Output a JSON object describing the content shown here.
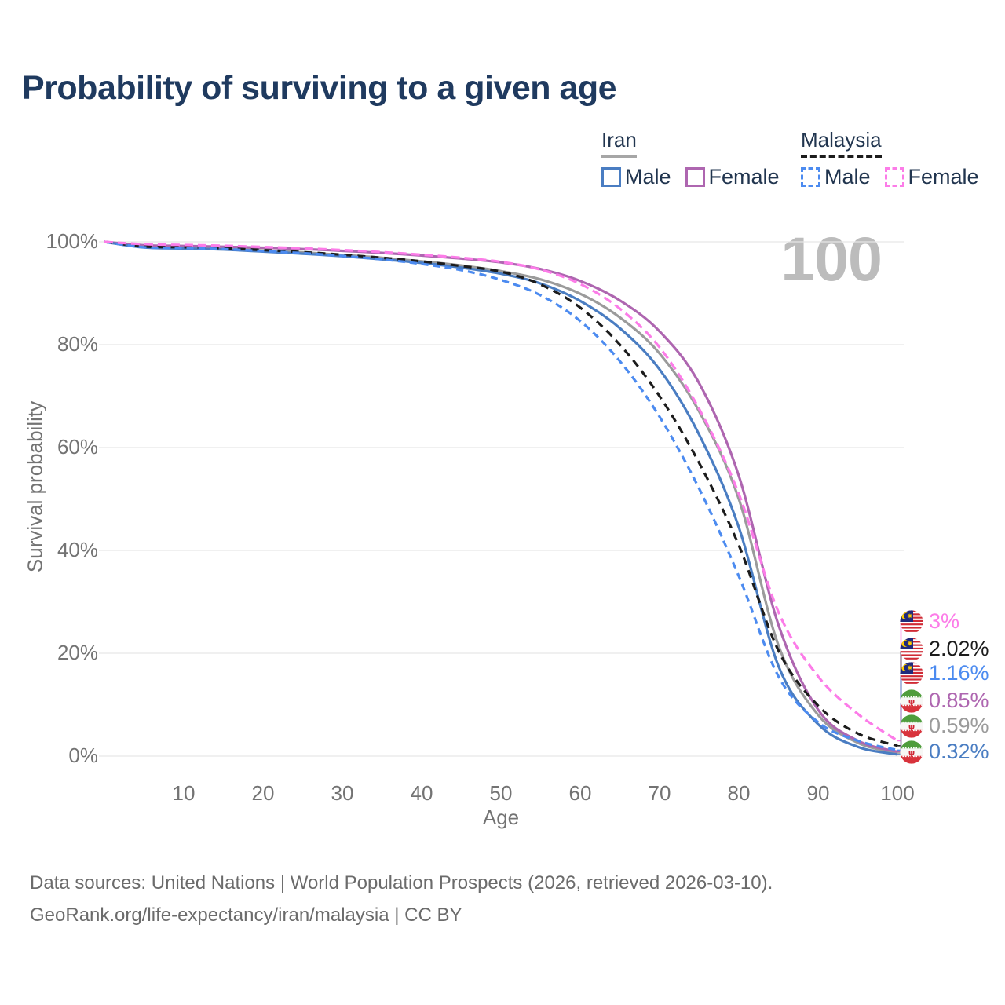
{
  "title": "Probability of surviving to a given age",
  "age_counter": "100",
  "legend": {
    "groups": [
      {
        "country": "Iran",
        "underline_style": "solid",
        "underline_color": "#a6a6a6",
        "items": [
          {
            "label": "Male",
            "color": "#4a7dc2",
            "dashed": false
          },
          {
            "label": "Female",
            "color": "#ae66b0",
            "dashed": false
          }
        ]
      },
      {
        "country": "Malaysia",
        "underline_style": "dashed",
        "underline_color": "#1c1c1c",
        "items": [
          {
            "label": "Male",
            "color": "#4c8bf0",
            "dashed": true
          },
          {
            "label": "Female",
            "color": "#fc7ce8",
            "dashed": true
          }
        ]
      }
    ]
  },
  "chart_data": {
    "type": "line",
    "title": "Probability of surviving to a given age",
    "xlabel": "Age",
    "ylabel": "Survival probability",
    "xlim": [
      0,
      100
    ],
    "ylim": [
      0,
      100
    ],
    "grid": "horizontal",
    "x_ticks": [
      10,
      20,
      30,
      40,
      50,
      60,
      70,
      80,
      90,
      100
    ],
    "y_ticks": [
      {
        "value": 0,
        "label": "0%"
      },
      {
        "value": 20,
        "label": "20%"
      },
      {
        "value": 40,
        "label": "40%"
      },
      {
        "value": 60,
        "label": "60%"
      },
      {
        "value": 80,
        "label": "80%"
      },
      {
        "value": 100,
        "label": "100%"
      }
    ],
    "ages": [
      0,
      5,
      10,
      15,
      20,
      25,
      30,
      35,
      40,
      45,
      50,
      55,
      60,
      65,
      70,
      75,
      80,
      85,
      90,
      95,
      100
    ],
    "series": [
      {
        "name": "Iran Male",
        "slug": "iran-male",
        "country": "Iran",
        "sex": "Male",
        "color": "#4a7dc2",
        "dashed": false,
        "flag": "iran",
        "end_label": "0.32%",
        "end_value": 0.32,
        "values": [
          100,
          98.9,
          98.7,
          98.5,
          98.1,
          97.7,
          97.2,
          96.6,
          95.9,
          95.0,
          93.8,
          91.9,
          88.5,
          83.2,
          75.2,
          62.5,
          44.5,
          17.5,
          6.2,
          1.8,
          0.32
        ]
      },
      {
        "name": "Iran Female",
        "slug": "iran-female",
        "country": "Iran",
        "sex": "Female",
        "color": "#ae66b0",
        "dashed": false,
        "flag": "iran",
        "end_label": "0.85%",
        "end_value": 0.85,
        "values": [
          100,
          99.35,
          99.2,
          99.05,
          98.85,
          98.6,
          98.25,
          97.85,
          97.35,
          96.75,
          96.0,
          94.7,
          92.4,
          88.6,
          82.6,
          72.5,
          54.5,
          25.5,
          9.0,
          3.0,
          0.85
        ]
      },
      {
        "name": "Iran",
        "slug": "iran",
        "country": "Iran",
        "sex": "Both",
        "color": "#9b9b9b",
        "dashed": false,
        "flag": "iran",
        "end_label": "0.59%",
        "end_value": 0.59,
        "values": [
          100,
          99.0,
          98.85,
          98.7,
          98.3,
          97.95,
          97.45,
          96.9,
          96.2,
          95.4,
          94.3,
          92.7,
          89.9,
          85.3,
          78.3,
          67.0,
          50.0,
          21.5,
          8.0,
          2.6,
          0.59
        ]
      },
      {
        "name": "Malaysia Male",
        "slug": "malaysia-male",
        "country": "Malaysia",
        "sex": "Male",
        "color": "#4c8bf0",
        "dashed": true,
        "flag": "malaysia",
        "end_label": "1.16%",
        "end_value": 1.16,
        "values": [
          100,
          98.95,
          98.8,
          98.6,
          98.2,
          97.8,
          97.25,
          96.6,
          95.7,
          94.5,
          92.6,
          89.6,
          84.6,
          76.8,
          66.0,
          52.0,
          35.0,
          15.5,
          6.6,
          3.0,
          1.16
        ]
      },
      {
        "name": "Malaysia Female",
        "slug": "malaysia-female",
        "country": "Malaysia",
        "sex": "Female",
        "color": "#fc7ce8",
        "dashed": true,
        "flag": "malaysia",
        "end_label": "3%",
        "end_value": 3.0,
        "values": [
          100,
          99.55,
          99.4,
          99.25,
          99.0,
          98.75,
          98.4,
          98.0,
          97.5,
          96.9,
          96.1,
          94.6,
          91.8,
          87.0,
          79.5,
          67.5,
          51.0,
          28.0,
          15.5,
          8.2,
          3.0
        ]
      },
      {
        "name": "Malaysia",
        "slug": "malaysia",
        "country": "Malaysia",
        "sex": "Both",
        "color": "#1c1c1c",
        "dashed": true,
        "flag": "malaysia",
        "end_label": "2.02%",
        "end_value": 2.02,
        "values": [
          100,
          99.1,
          98.95,
          98.75,
          98.4,
          98.0,
          97.5,
          96.9,
          96.2,
          95.3,
          94.2,
          91.7,
          87.2,
          80.0,
          70.0,
          57.0,
          41.0,
          20.5,
          9.8,
          4.4,
          2.02
        ]
      }
    ],
    "end_label_order": [
      "Malaysia Female",
      "Malaysia",
      "Malaysia Male",
      "Iran Female",
      "Iran",
      "Iran Male"
    ],
    "legend_position": "top-right"
  },
  "footer": {
    "line1": "Data sources: United Nations | World Population Prospects (2026, retrieved 2026-03-10).",
    "line2": "GeoRank.org/life-expectancy/iran/malaysia | CC BY"
  }
}
